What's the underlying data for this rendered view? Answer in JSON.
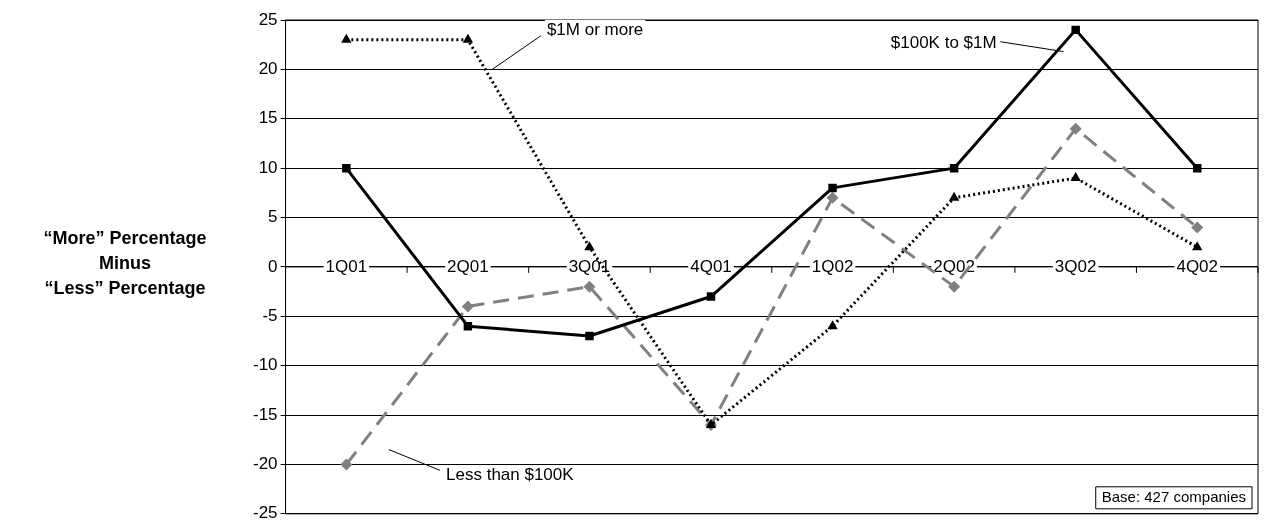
{
  "chart_data": {
    "type": "line",
    "ylabel": "“More” Percentage\nMinus\n“Less” Percentage",
    "categories": [
      "1Q01",
      "2Q01",
      "3Q01",
      "4Q01",
      "1Q02",
      "2Q02",
      "3Q02",
      "4Q02"
    ],
    "series": [
      {
        "name": "$100K to $1M",
        "color": "#000000",
        "marker": "square",
        "line_style": "solid",
        "values": [
          10,
          -6,
          -7,
          -3,
          8,
          10,
          24,
          10
        ]
      },
      {
        "name": "$1M or more",
        "color": "#000000",
        "marker": "triangle",
        "line_style": "dotted",
        "values": [
          23,
          23,
          2,
          -16,
          -6,
          7,
          9,
          2
        ]
      },
      {
        "name": "Less than $100K",
        "color": "#808080",
        "marker": "diamond",
        "line_style": "dashed",
        "values": [
          -20,
          -4,
          -2,
          -16,
          7,
          -2,
          14,
          4
        ]
      }
    ],
    "ylim": [
      -25,
      25
    ],
    "yticks": [
      -25,
      -20,
      -15,
      -10,
      -5,
      0,
      5,
      10,
      15,
      20,
      25
    ],
    "grid": "y",
    "annotations": [
      "Base: 427 companies"
    ]
  }
}
